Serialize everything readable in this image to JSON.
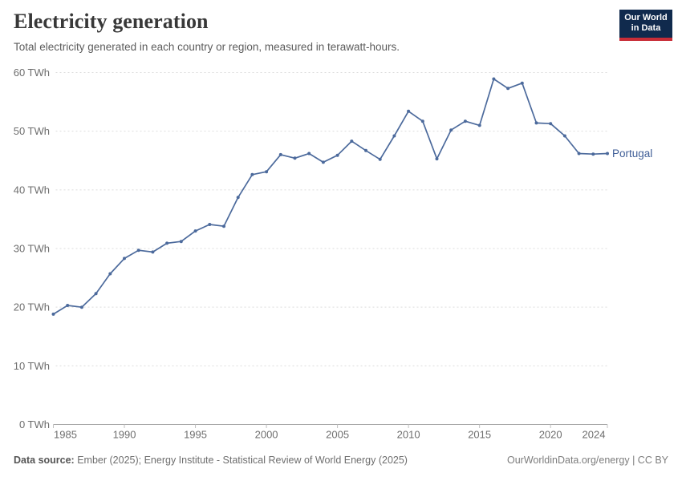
{
  "header": {
    "title": "Electricity generation",
    "subtitle": "Total electricity generated in each country or region, measured in terawatt-hours."
  },
  "logo": {
    "line1": "Our World",
    "line2": "in Data",
    "bg_color": "#102a4d",
    "bar_color": "#c82d37"
  },
  "chart_data": {
    "type": "line",
    "title": "Electricity generation",
    "unit": "TWh",
    "xlim": [
      1985,
      2024
    ],
    "ylim": [
      0,
      60
    ],
    "x_ticks": [
      1985,
      1990,
      1995,
      2000,
      2005,
      2010,
      2015,
      2020,
      2024
    ],
    "y_ticks": [
      0,
      10,
      20,
      30,
      40,
      50,
      60
    ],
    "y_tick_suffix": " TWh",
    "grid": "dashed-horizontal",
    "legend_position": "end-of-line",
    "series": [
      {
        "name": "Portugal",
        "color": "#4c6a9c",
        "x": [
          1985,
          1986,
          1987,
          1988,
          1989,
          1990,
          1991,
          1992,
          1993,
          1994,
          1995,
          1996,
          1997,
          1998,
          1999,
          2000,
          2001,
          2002,
          2003,
          2004,
          2005,
          2006,
          2007,
          2008,
          2009,
          2010,
          2011,
          2012,
          2013,
          2014,
          2015,
          2016,
          2017,
          2018,
          2019,
          2020,
          2021,
          2022,
          2023,
          2024
        ],
        "values": [
          18.8,
          20.3,
          20.0,
          22.3,
          25.7,
          28.3,
          29.7,
          29.4,
          30.9,
          31.2,
          33.0,
          34.1,
          33.8,
          38.7,
          42.6,
          43.1,
          46.0,
          45.4,
          46.2,
          44.7,
          45.9,
          48.3,
          46.7,
          45.2,
          49.2,
          53.4,
          51.7,
          45.3,
          50.2,
          51.7,
          51.0,
          58.9,
          57.3,
          58.2,
          51.4,
          51.3,
          49.2,
          46.2,
          46.1,
          46.2
        ]
      }
    ]
  },
  "footer": {
    "source_label": "Data source:",
    "source_text": "Ember (2025); Energy Institute - Statistical Review of World Energy (2025)",
    "right_text": "OurWorldinData.org/energy | CC BY"
  },
  "colors": {
    "gridline": "#dcdcdc",
    "axis": "#a8a8a8",
    "tick": "#c0c0c0",
    "tick_label": "#6e6e6e",
    "series_label": "#3f5e97"
  }
}
